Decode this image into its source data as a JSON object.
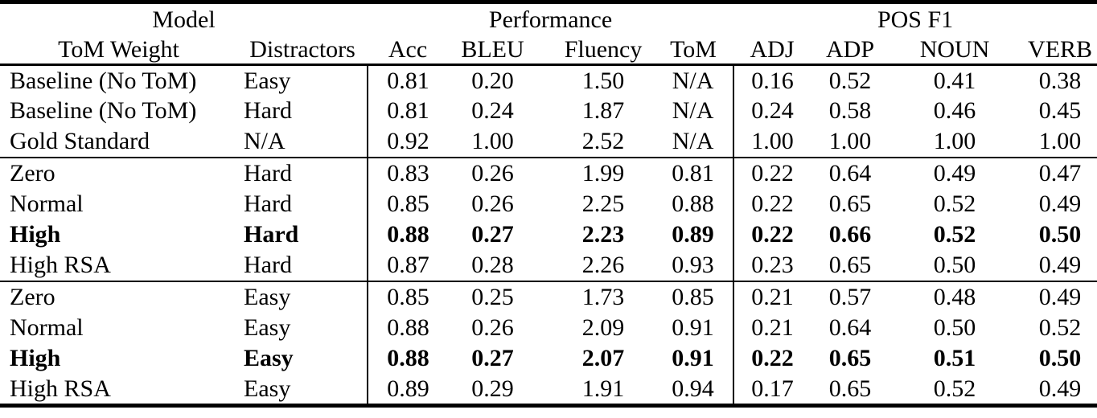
{
  "table": {
    "header": {
      "group_row": [
        {
          "label": "Model",
          "span": 2
        },
        {
          "label": "Performance",
          "span": 4
        },
        {
          "label": "POS F1",
          "span": 4
        }
      ],
      "columns": [
        "ToM Weight",
        "Distractors",
        "Acc",
        "BLEU",
        "Fluency",
        "ToM",
        "ADJ",
        "ADP",
        "NOUN",
        "VERB"
      ]
    },
    "sections": [
      {
        "rows": [
          {
            "bold": false,
            "cells": [
              "Baseline (No ToM)",
              "Easy",
              "0.81",
              "0.20",
              "1.50",
              "N/A",
              "0.16",
              "0.52",
              "0.41",
              "0.38"
            ]
          },
          {
            "bold": false,
            "cells": [
              "Baseline (No ToM)",
              "Hard",
              "0.81",
              "0.24",
              "1.87",
              "N/A",
              "0.24",
              "0.58",
              "0.46",
              "0.45"
            ]
          },
          {
            "bold": false,
            "cells": [
              "Gold Standard",
              "N/A",
              "0.92",
              "1.00",
              "2.52",
              "N/A",
              "1.00",
              "1.00",
              "1.00",
              "1.00"
            ]
          }
        ]
      },
      {
        "rows": [
          {
            "bold": false,
            "cells": [
              "Zero",
              "Hard",
              "0.83",
              "0.26",
              "1.99",
              "0.81",
              "0.22",
              "0.64",
              "0.49",
              "0.47"
            ]
          },
          {
            "bold": false,
            "cells": [
              "Normal",
              "Hard",
              "0.85",
              "0.26",
              "2.25",
              "0.88",
              "0.22",
              "0.65",
              "0.52",
              "0.49"
            ]
          },
          {
            "bold": true,
            "cells": [
              "High",
              "Hard",
              "0.88",
              "0.27",
              "2.23",
              "0.89",
              "0.22",
              "0.66",
              "0.52",
              "0.50"
            ]
          },
          {
            "bold": false,
            "cells": [
              "High RSA",
              "Hard",
              "0.87",
              "0.28",
              "2.26",
              "0.93",
              "0.23",
              "0.65",
              "0.50",
              "0.49"
            ]
          }
        ]
      },
      {
        "rows": [
          {
            "bold": false,
            "cells": [
              "Zero",
              "Easy",
              "0.85",
              "0.25",
              "1.73",
              "0.85",
              "0.21",
              "0.57",
              "0.48",
              "0.49"
            ]
          },
          {
            "bold": false,
            "cells": [
              "Normal",
              "Easy",
              "0.88",
              "0.26",
              "2.09",
              "0.91",
              "0.21",
              "0.64",
              "0.50",
              "0.52"
            ]
          },
          {
            "bold": true,
            "cells": [
              "High",
              "Easy",
              "0.88",
              "0.27",
              "2.07",
              "0.91",
              "0.22",
              "0.65",
              "0.51",
              "0.50"
            ]
          },
          {
            "bold": false,
            "cells": [
              "High RSA",
              "Easy",
              "0.89",
              "0.29",
              "1.91",
              "0.94",
              "0.17",
              "0.65",
              "0.52",
              "0.49"
            ]
          }
        ]
      }
    ]
  },
  "colors": {
    "text": "#000000",
    "background": "#ffffff",
    "rule": "#000000"
  }
}
